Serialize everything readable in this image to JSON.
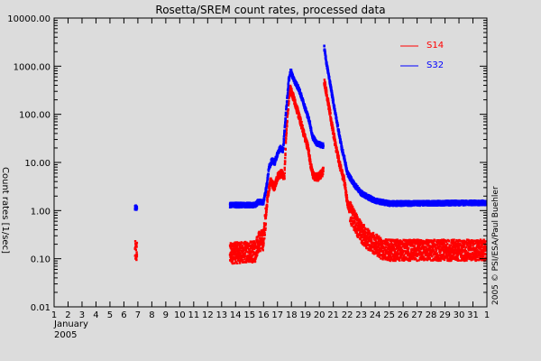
{
  "chart_data": {
    "type": "scatter",
    "title": "Rosetta/SREM count rates, processed data",
    "ylabel": "Count rates [1/sec]",
    "xlabel_lines": [
      "January",
      "2005"
    ],
    "credit": "2005 © PSI/ESA/Paul Buehler",
    "yscale": "log",
    "ylim": [
      0.01,
      10000
    ],
    "xlim": [
      1,
      32
    ],
    "y_tick_labels": [
      "0.01",
      "0.10",
      "1.00",
      "10.00",
      "100.00",
      "1000.00",
      "10000.00"
    ],
    "y_tick_values": [
      0.01,
      0.1,
      1,
      10,
      100,
      1000,
      10000
    ],
    "x_tick_labels": [
      "1",
      "2",
      "3",
      "4",
      "5",
      "6",
      "7",
      "8",
      "9",
      "10",
      "11",
      "12",
      "13",
      "14",
      "15",
      "16",
      "17",
      "18",
      "19",
      "20",
      "21",
      "22",
      "23",
      "24",
      "25",
      "26",
      "27",
      "28",
      "29",
      "30",
      "31",
      "1"
    ],
    "grid": false,
    "legend_position": "top-right",
    "series": [
      {
        "name": "S14",
        "color": "#ff0000",
        "segments": [
          [
            [
              6.8,
              0.14
            ],
            [
              6.95,
              0.14
            ]
          ],
          [
            [
              13.6,
              0.13
            ],
            [
              15.4,
              0.14
            ],
            [
              15.6,
              0.22
            ],
            [
              16.0,
              0.25
            ],
            [
              16.1,
              0.5
            ],
            [
              16.3,
              2
            ],
            [
              16.5,
              4
            ],
            [
              16.8,
              3
            ],
            [
              17.0,
              5
            ],
            [
              17.3,
              6
            ],
            [
              17.5,
              5
            ],
            [
              17.6,
              30
            ],
            [
              17.8,
              200
            ],
            [
              17.9,
              350
            ],
            [
              18.2,
              200
            ],
            [
              18.5,
              100
            ],
            [
              18.8,
              50
            ],
            [
              19.0,
              30
            ],
            [
              19.2,
              20
            ],
            [
              19.4,
              8
            ],
            [
              19.6,
              5
            ],
            [
              19.9,
              5
            ],
            [
              20.2,
              6
            ],
            [
              20.3,
              7
            ]
          ],
          [
            [
              20.35,
              500
            ],
            [
              20.6,
              200
            ],
            [
              20.9,
              60
            ],
            [
              21.2,
              20
            ],
            [
              21.5,
              8
            ],
            [
              21.8,
              4
            ],
            [
              22.0,
              1.5
            ],
            [
              22.3,
              0.8
            ],
            [
              22.7,
              0.5
            ],
            [
              23.0,
              0.35
            ],
            [
              23.5,
              0.25
            ],
            [
              24.0,
              0.2
            ],
            [
              24.5,
              0.16
            ],
            [
              25.0,
              0.15
            ],
            [
              31.95,
              0.15
            ]
          ]
        ]
      },
      {
        "name": "S32",
        "color": "#0000ff",
        "segments": [
          [
            [
              6.8,
              1.15
            ],
            [
              6.95,
              1.15
            ]
          ],
          [
            [
              13.6,
              1.3
            ],
            [
              15.4,
              1.3
            ],
            [
              15.6,
              1.5
            ],
            [
              16.0,
              1.5
            ],
            [
              16.2,
              3
            ],
            [
              16.4,
              8
            ],
            [
              16.6,
              11
            ],
            [
              16.8,
              10
            ],
            [
              17.0,
              15
            ],
            [
              17.2,
              20
            ],
            [
              17.4,
              18
            ],
            [
              17.6,
              100
            ],
            [
              17.8,
              500
            ],
            [
              17.95,
              800
            ],
            [
              18.2,
              500
            ],
            [
              18.5,
              350
            ],
            [
              18.8,
              200
            ],
            [
              19.0,
              130
            ],
            [
              19.3,
              70
            ],
            [
              19.5,
              35
            ],
            [
              19.8,
              25
            ],
            [
              20.3,
              22
            ]
          ],
          [
            [
              20.35,
              2400
            ],
            [
              20.5,
              1200
            ],
            [
              20.8,
              400
            ],
            [
              21.0,
              180
            ],
            [
              21.3,
              60
            ],
            [
              21.6,
              20
            ],
            [
              21.8,
              12
            ],
            [
              22.0,
              6
            ],
            [
              22.5,
              3.5
            ],
            [
              23.0,
              2.3
            ],
            [
              23.5,
              1.9
            ],
            [
              24.0,
              1.6
            ],
            [
              24.5,
              1.5
            ],
            [
              25.0,
              1.4
            ],
            [
              31.95,
              1.45
            ]
          ]
        ]
      }
    ]
  }
}
